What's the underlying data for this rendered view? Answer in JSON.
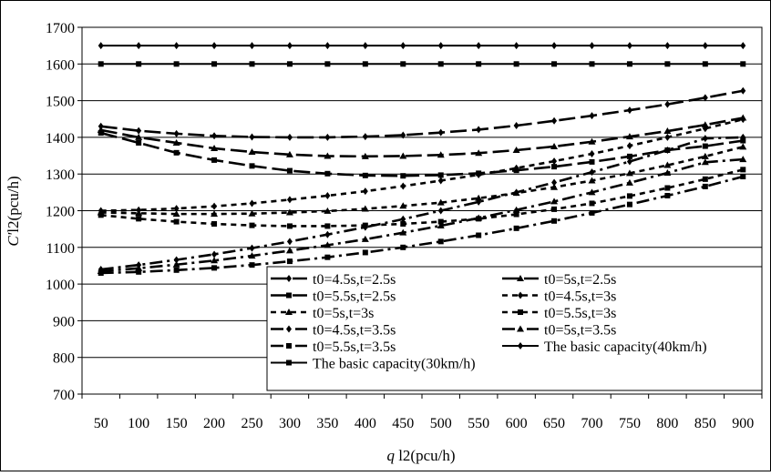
{
  "chart_data": {
    "type": "line",
    "xlabel_italic": "q",
    "xlabel_rest": " l2(pcu/h)",
    "ylabel_italic": "C'",
    "ylabel_rest": "l2(pcu/h)",
    "x": [
      50,
      100,
      150,
      200,
      250,
      300,
      350,
      400,
      450,
      500,
      550,
      600,
      650,
      700,
      750,
      800,
      850,
      900
    ],
    "ylim": [
      700,
      1700
    ],
    "yticks": [
      700,
      800,
      900,
      1000,
      1100,
      1200,
      1300,
      1400,
      1500,
      1600,
      1700
    ],
    "grid": "horizontal",
    "legend_position": "bottom-right",
    "series": [
      {
        "name": "t0=4.5s,t=2.5s",
        "marker": "diamond",
        "dash": "long",
        "values": [
          1430,
          1418,
          1410,
          1404,
          1401,
          1400,
          1400,
          1402,
          1406,
          1413,
          1421,
          1432,
          1445,
          1459,
          1474,
          1490,
          1508,
          1527
        ]
      },
      {
        "name": "t0=5s,t=2.5s",
        "marker": "triangle",
        "dash": "long",
        "values": [
          1420,
          1400,
          1385,
          1370,
          1360,
          1353,
          1349,
          1348,
          1349,
          1352,
          1357,
          1365,
          1375,
          1388,
          1402,
          1417,
          1434,
          1453
        ]
      },
      {
        "name": "t0=5.5s,t=2.5s",
        "marker": "square",
        "dash": "long",
        "values": [
          1412,
          1385,
          1358,
          1338,
          1322,
          1309,
          1301,
          1296,
          1295,
          1297,
          1302,
          1310,
          1320,
          1333,
          1348,
          1365,
          1376,
          1391
        ]
      },
      {
        "name": "t0=4.5s,t=3s",
        "marker": "diamond",
        "dash": "short",
        "values": [
          1200,
          1202,
          1206,
          1212,
          1220,
          1230,
          1241,
          1253,
          1267,
          1282,
          1298,
          1316,
          1335,
          1355,
          1377,
          1400,
          1424,
          1449
        ]
      },
      {
        "name": "t0=5s,t=3s",
        "marker": "triangle",
        "dash": "short",
        "values": [
          1195,
          1193,
          1191,
          1191,
          1192,
          1195,
          1199,
          1205,
          1213,
          1222,
          1234,
          1248,
          1264,
          1282,
          1302,
          1324,
          1348,
          1374
        ]
      },
      {
        "name": "t0=5.5s,t=3s",
        "marker": "square",
        "dash": "short",
        "values": [
          1188,
          1178,
          1170,
          1164,
          1160,
          1158,
          1158,
          1160,
          1164,
          1170,
          1178,
          1190,
          1204,
          1220,
          1240,
          1262,
          1286,
          1312
        ]
      },
      {
        "name": "t0=4.5s,t=3.5s",
        "marker": "diamond",
        "dash": "dashdot",
        "values": [
          1040,
          1052,
          1066,
          1081,
          1098,
          1116,
          1135,
          1155,
          1177,
          1200,
          1224,
          1250,
          1277,
          1305,
          1334,
          1365,
          1397,
          1400
        ]
      },
      {
        "name": "t0=5s,t=3.5s",
        "marker": "triangle",
        "dash": "dashdot",
        "values": [
          1035,
          1043,
          1053,
          1064,
          1077,
          1091,
          1106,
          1122,
          1140,
          1159,
          1180,
          1202,
          1225,
          1250,
          1276,
          1303,
          1332,
          1340
        ]
      },
      {
        "name": "t0=5.5s,t=3.5s",
        "marker": "square",
        "dash": "dashdot",
        "values": [
          1030,
          1033,
          1038,
          1044,
          1052,
          1062,
          1073,
          1086,
          1100,
          1116,
          1133,
          1152,
          1172,
          1194,
          1217,
          1241,
          1266,
          1293
        ]
      },
      {
        "name": "The basic capacity(40km/h)",
        "marker": "diamond",
        "dash": "solid",
        "values": [
          1650,
          1650,
          1650,
          1650,
          1650,
          1650,
          1650,
          1650,
          1650,
          1650,
          1650,
          1650,
          1650,
          1650,
          1650,
          1650,
          1650,
          1650
        ]
      },
      {
        "name": "The basic capacity(30km/h)",
        "marker": "square",
        "dash": "solid",
        "values": [
          1600,
          1600,
          1600,
          1600,
          1600,
          1600,
          1600,
          1600,
          1600,
          1600,
          1600,
          1600,
          1600,
          1600,
          1600,
          1600,
          1600,
          1600
        ]
      }
    ]
  }
}
